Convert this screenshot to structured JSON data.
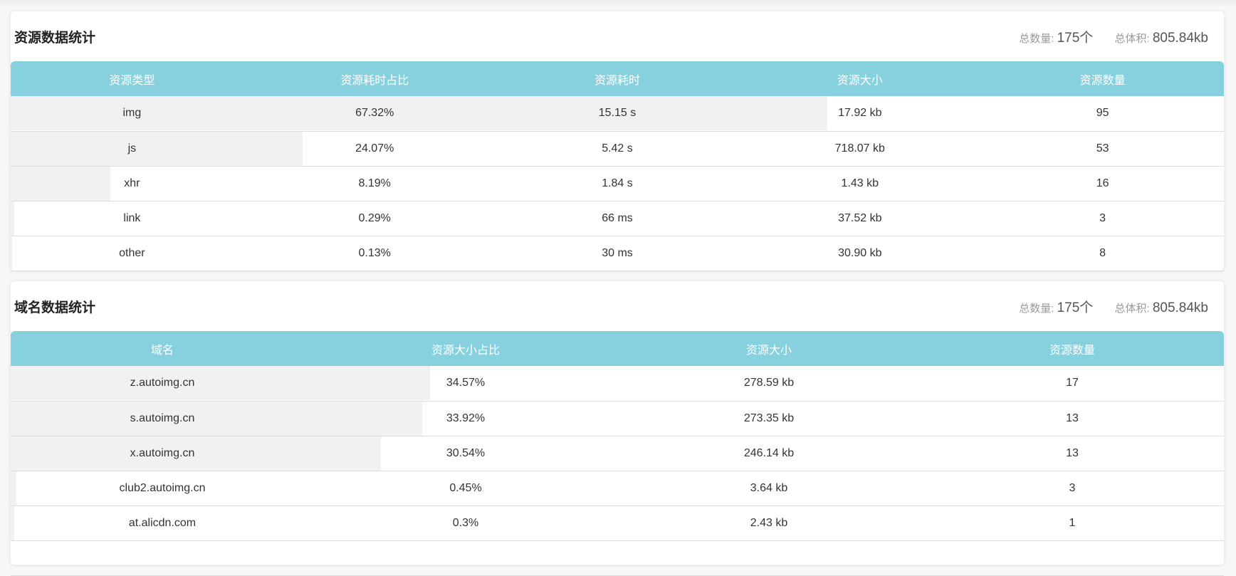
{
  "resource": {
    "title": "资源数据统计",
    "total_count_label": "总数量:",
    "total_count": "175个",
    "total_size_label": "总体积:",
    "total_size": "805.84kb",
    "columns": [
      "资源类型",
      "资源耗时占比",
      "资源耗时",
      "资源大小",
      "资源数量"
    ],
    "rows": [
      {
        "type": "img",
        "ratio": "67.32%",
        "time": "15.15 s",
        "size": "17.92 kb",
        "count": "95",
        "fill": 67.32
      },
      {
        "type": "js",
        "ratio": "24.07%",
        "time": "5.42 s",
        "size": "718.07 kb",
        "count": "53",
        "fill": 24.07
      },
      {
        "type": "xhr",
        "ratio": "8.19%",
        "time": "1.84 s",
        "size": "1.43 kb",
        "count": "16",
        "fill": 8.19
      },
      {
        "type": "link",
        "ratio": "0.29%",
        "time": "66 ms",
        "size": "37.52 kb",
        "count": "3",
        "fill": 0.29
      },
      {
        "type": "other",
        "ratio": "0.13%",
        "time": "30 ms",
        "size": "30.90 kb",
        "count": "8",
        "fill": 0.13
      }
    ]
  },
  "domain": {
    "title": "域名数据统计",
    "total_count_label": "总数量:",
    "total_count": "175个",
    "total_size_label": "总体积:",
    "total_size": "805.84kb",
    "columns": [
      "域名",
      "资源大小占比",
      "资源大小",
      "资源数量"
    ],
    "rows": [
      {
        "domain": "z.autoimg.cn",
        "ratio": "34.57%",
        "size": "278.59 kb",
        "count": "17",
        "fill": 34.57
      },
      {
        "domain": "s.autoimg.cn",
        "ratio": "33.92%",
        "size": "273.35 kb",
        "count": "13",
        "fill": 33.92
      },
      {
        "domain": "x.autoimg.cn",
        "ratio": "30.54%",
        "size": "246.14 kb",
        "count": "13",
        "fill": 30.54
      },
      {
        "domain": "club2.autoimg.cn",
        "ratio": "0.45%",
        "size": "3.64 kb",
        "count": "3",
        "fill": 0.45
      },
      {
        "domain": "at.alicdn.com",
        "ratio": "0.3%",
        "size": "2.43 kb",
        "count": "1",
        "fill": 0.3
      }
    ]
  },
  "colors": {
    "header": "#87d0de",
    "bar": "#f1f1f1"
  }
}
